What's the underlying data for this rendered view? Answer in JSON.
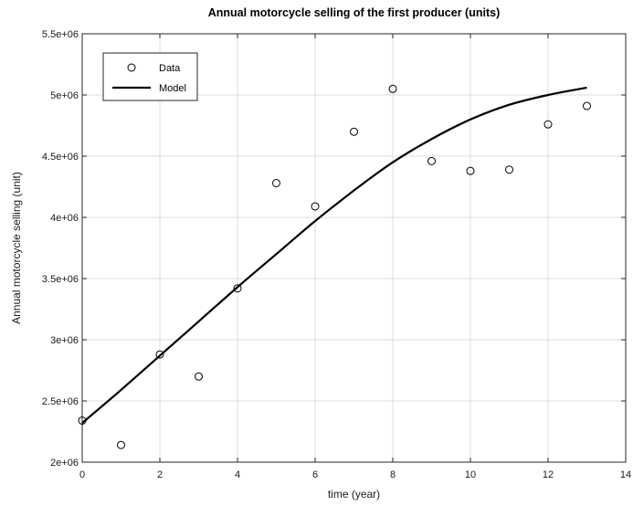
{
  "chart_data": {
    "type": "scatter",
    "title": "Annual motorcycle selling of the first producer (units)",
    "xlabel": "time (year)",
    "ylabel": "Annual motorcycle selling (unit)",
    "xlim": [
      0,
      14
    ],
    "ylim": [
      2000000,
      5500000
    ],
    "grid": true,
    "legend_position": "top-left",
    "x_ticks": [
      0,
      2,
      4,
      6,
      8,
      10,
      12,
      14
    ],
    "x_tick_labels": [
      "0",
      "2",
      "4",
      "6",
      "8",
      "10",
      "12",
      "14"
    ],
    "y_ticks": [
      2000000,
      2500000,
      3000000,
      3500000,
      4000000,
      4500000,
      5000000,
      5500000
    ],
    "y_tick_labels": [
      "2e+06",
      "2.5e+06",
      "3e+06",
      "3.5e+06",
      "4e+06",
      "4.5e+06",
      "5e+06",
      "5.5e+06"
    ],
    "series": [
      {
        "name": "Data",
        "kind": "markers",
        "marker": "open-circle",
        "color": "#000000",
        "x": [
          0,
          1,
          2,
          3,
          4,
          5,
          6,
          7,
          8,
          9,
          10,
          11,
          12,
          13
        ],
        "y": [
          2340000,
          2140000,
          2880000,
          2700000,
          3420000,
          4280000,
          4090000,
          4700000,
          5050000,
          4460000,
          4380000,
          4390000,
          4760000,
          4910000
        ]
      },
      {
        "name": "Model",
        "kind": "line",
        "color": "#000000",
        "x": [
          0,
          1,
          2,
          3,
          4,
          5,
          6,
          7,
          8,
          9,
          10,
          11,
          12,
          13
        ],
        "y": [
          2320000,
          2590000,
          2870000,
          3150000,
          3430000,
          3700000,
          3970000,
          4220000,
          4450000,
          4640000,
          4800000,
          4920000,
          5000000,
          5060000
        ]
      }
    ]
  }
}
